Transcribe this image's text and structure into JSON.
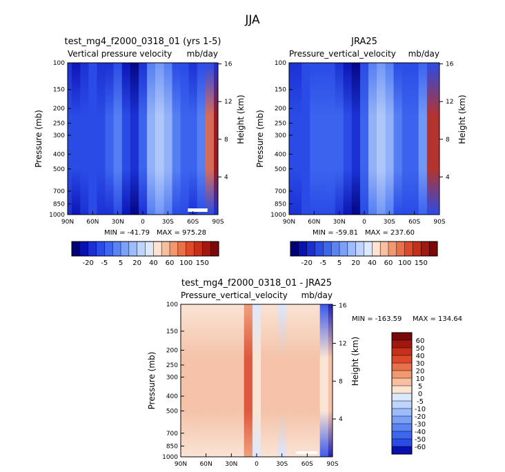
{
  "figure": {
    "title": "JJA"
  },
  "chart_data": [
    {
      "type": "heatmap",
      "title": "test_mg4_f2000_0318_01 (yrs 1-5)",
      "subtitle_left": "Vertical pressure velocity",
      "subtitle_right": "mb/day",
      "ylabel": "Pressure (mb)",
      "ylabel_right": "Height (km)",
      "x_ticks": [
        "90N",
        "60N",
        "30N",
        "0",
        "30S",
        "60S",
        "90S"
      ],
      "p_ticks": [
        "100",
        "150",
        "200",
        "250",
        "300",
        "400",
        "500",
        "700",
        "850",
        "1000"
      ],
      "h_ticks": [
        "16",
        "12",
        "8",
        "4"
      ],
      "min_label": "MIN = -41.79",
      "max_label": "MAX = 975.28",
      "colorbar_labels": [
        "-20",
        "-5",
        "5",
        "20",
        "40",
        "60",
        "100",
        "150"
      ],
      "colorbar_colors": [
        "#00007a",
        "#0a0fb0",
        "#1a2ed2",
        "#2a4be6",
        "#3d66ef",
        "#5a84f4",
        "#7aa0f8",
        "#9ebcfb",
        "#bed4fd",
        "#dbe8fe",
        "#fde3d0",
        "#f7bfa0",
        "#f19870",
        "#e8704a",
        "#dc4a2a",
        "#c4301a",
        "#a2180e",
        "#7a0808"
      ],
      "bands": [
        {
          "lat": 90,
          "lo": 2,
          "hi": 3
        },
        {
          "lat": 80,
          "lo": 1,
          "hi": 3
        },
        {
          "lat": 70,
          "lo": 2,
          "hi": 3
        },
        {
          "lat": 60,
          "lo": 3,
          "hi": 3
        },
        {
          "lat": 50,
          "lo": 2,
          "hi": 3
        },
        {
          "lat": 40,
          "lo": 2,
          "hi": 4
        },
        {
          "lat": 30,
          "lo": 3,
          "hi": 5
        },
        {
          "lat": 20,
          "lo": 1,
          "hi": 3
        },
        {
          "lat": 10,
          "lo": 0,
          "hi": 2
        },
        {
          "lat": 0,
          "lo": 2,
          "hi": 4
        },
        {
          "lat": -10,
          "lo": 5,
          "hi": 7
        },
        {
          "lat": -20,
          "lo": 6,
          "hi": 8
        },
        {
          "lat": -30,
          "lo": 5,
          "hi": 7
        },
        {
          "lat": -40,
          "lo": 3,
          "hi": 5
        },
        {
          "lat": -50,
          "lo": 3,
          "hi": 4
        },
        {
          "lat": -60,
          "lo": 2,
          "hi": 4
        },
        {
          "lat": -70,
          "lo": 3,
          "hi": 5
        },
        {
          "lat": -80,
          "lo": 3,
          "hi": 13
        },
        {
          "lat": -90,
          "lo": 2,
          "hi": 16
        }
      ]
    },
    {
      "type": "heatmap",
      "title": "JRA25",
      "subtitle_left": "Pressure_vertical_velocity",
      "subtitle_right": "mb/day",
      "ylabel": "Pressure (mb)",
      "ylabel_right": "Height (km)",
      "x_ticks": [
        "90N",
        "60N",
        "30N",
        "0",
        "30S",
        "60S",
        "90S"
      ],
      "p_ticks": [
        "100",
        "150",
        "200",
        "250",
        "300",
        "400",
        "500",
        "700",
        "850",
        "1000"
      ],
      "h_ticks": [
        "16",
        "12",
        "8",
        "4"
      ],
      "min_label": "MIN = -59.81",
      "max_label": "MAX = 237.60",
      "colorbar_labels": [
        "-20",
        "-5",
        "5",
        "20",
        "40",
        "60",
        "100",
        "150"
      ],
      "colorbar_colors": [
        "#00007a",
        "#0a0fb0",
        "#1a2ed2",
        "#2a4be6",
        "#3d66ef",
        "#5a84f4",
        "#7aa0f8",
        "#9ebcfb",
        "#bed4fd",
        "#dbe8fe",
        "#fde3d0",
        "#f7bfa0",
        "#f19870",
        "#e8704a",
        "#dc4a2a",
        "#c4301a",
        "#a2180e",
        "#7a0808"
      ],
      "bands": [
        {
          "lat": 90,
          "lo": 2,
          "hi": 3
        },
        {
          "lat": 80,
          "lo": 2,
          "hi": 3
        },
        {
          "lat": 70,
          "lo": 3,
          "hi": 3
        },
        {
          "lat": 60,
          "lo": 3,
          "hi": 4
        },
        {
          "lat": 50,
          "lo": 3,
          "hi": 4
        },
        {
          "lat": 40,
          "lo": 3,
          "hi": 4
        },
        {
          "lat": 30,
          "lo": 2,
          "hi": 4
        },
        {
          "lat": 20,
          "lo": 1,
          "hi": 3
        },
        {
          "lat": 10,
          "lo": 0,
          "hi": 2
        },
        {
          "lat": 0,
          "lo": 3,
          "hi": 4
        },
        {
          "lat": -10,
          "lo": 5,
          "hi": 7
        },
        {
          "lat": -20,
          "lo": 6,
          "hi": 8
        },
        {
          "lat": -30,
          "lo": 5,
          "hi": 7
        },
        {
          "lat": -40,
          "lo": 3,
          "hi": 5
        },
        {
          "lat": -50,
          "lo": 3,
          "hi": 4
        },
        {
          "lat": -60,
          "lo": 3,
          "hi": 4
        },
        {
          "lat": -70,
          "lo": 4,
          "hi": 6
        },
        {
          "lat": -80,
          "lo": 3,
          "hi": 15
        },
        {
          "lat": -90,
          "lo": 3,
          "hi": 15
        }
      ]
    },
    {
      "type": "heatmap",
      "title": "test_mg4_f2000_0318_01 - JRA25",
      "subtitle_left": "Pressure_vertical_velocity",
      "subtitle_right": "mb/day",
      "ylabel": "Pressure (mb)",
      "ylabel_right": "Height (km)",
      "x_ticks": [
        "90N",
        "60N",
        "30N",
        "0",
        "30S",
        "60S",
        "90S"
      ],
      "p_ticks": [
        "100",
        "150",
        "200",
        "250",
        "300",
        "400",
        "500",
        "700",
        "850",
        "1000"
      ],
      "h_ticks": [
        "16",
        "12",
        "8",
        "4"
      ],
      "min_label": "MIN = -163.59",
      "max_label": "MAX = 134.64",
      "colorbar_labels": [
        "60",
        "50",
        "40",
        "30",
        "20",
        "10",
        "5",
        "0",
        "-5",
        "-10",
        "-20",
        "-30",
        "-40",
        "-50",
        "-60"
      ],
      "colorbar_colors": [
        "#7a0808",
        "#a2180e",
        "#c4301a",
        "#dc4a2a",
        "#e8704a",
        "#f19870",
        "#f7bfa0",
        "#fde3d0",
        "#dbe8fe",
        "#bed4fd",
        "#9ebcfb",
        "#7aa0f8",
        "#5a84f4",
        "#3d66ef",
        "#2a4be6",
        "#0a0fb0"
      ],
      "bands": [
        {
          "lat": 90,
          "lo": 8,
          "hi": 9
        },
        {
          "lat": 80,
          "lo": 8,
          "hi": 9
        },
        {
          "lat": 70,
          "lo": 8,
          "hi": 9
        },
        {
          "lat": 60,
          "lo": 8,
          "hi": 9
        },
        {
          "lat": 50,
          "lo": 8,
          "hi": 9
        },
        {
          "lat": 40,
          "lo": 8,
          "hi": 9
        },
        {
          "lat": 30,
          "lo": 8,
          "hi": 9
        },
        {
          "lat": 20,
          "lo": 8,
          "hi": 9
        },
        {
          "lat": 10,
          "lo": 10,
          "hi": 12
        },
        {
          "lat": 0,
          "lo": 7,
          "hi": 8
        },
        {
          "lat": -10,
          "lo": 8,
          "hi": 9
        },
        {
          "lat": -20,
          "lo": 8,
          "hi": 9
        },
        {
          "lat": -30,
          "lo": 7,
          "hi": 9
        },
        {
          "lat": -40,
          "lo": 8,
          "hi": 9
        },
        {
          "lat": -50,
          "lo": 8,
          "hi": 9
        },
        {
          "lat": -60,
          "lo": 8,
          "hi": 9
        },
        {
          "lat": -70,
          "lo": 8,
          "hi": 9
        },
        {
          "lat": -80,
          "lo": 1,
          "hi": 8
        },
        {
          "lat": -90,
          "lo": 0,
          "hi": 9
        }
      ]
    }
  ]
}
